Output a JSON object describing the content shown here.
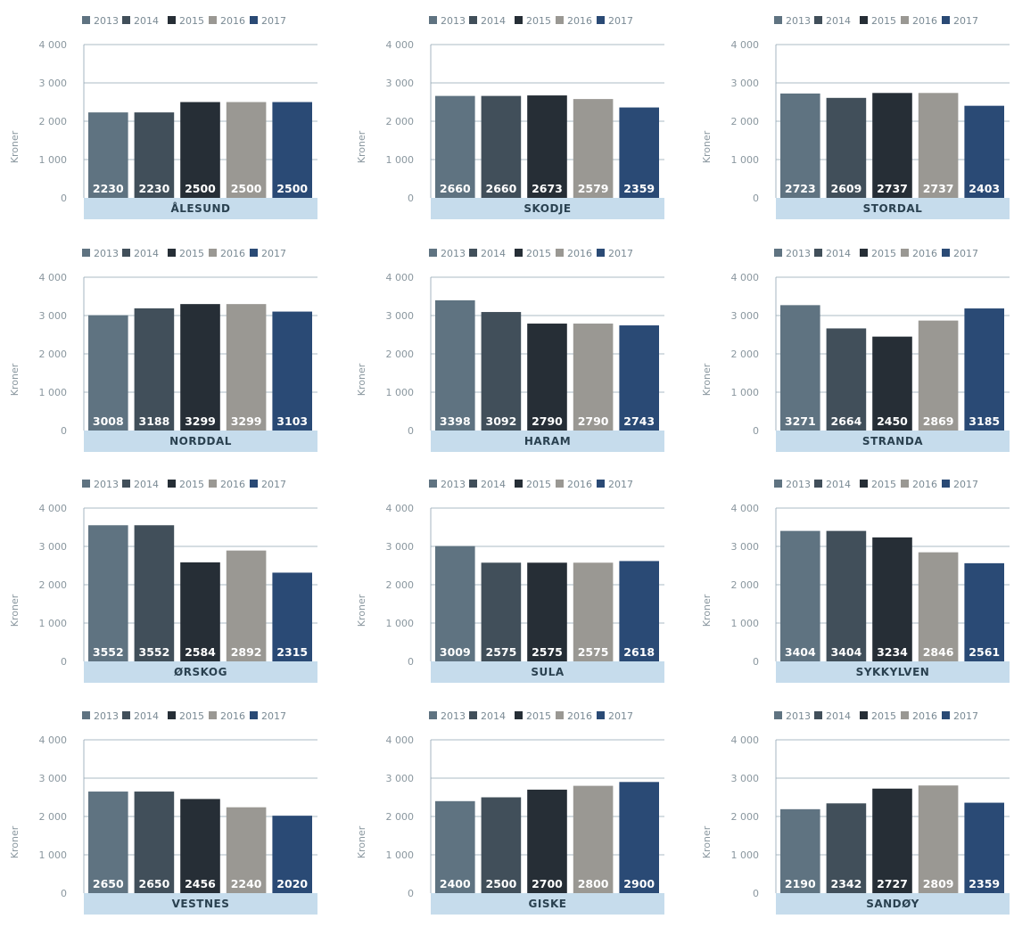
{
  "legend_years": [
    "2013",
    "2014",
    "2015",
    "2016",
    "2017"
  ],
  "series_colors": [
    "#5f7381",
    "#414f5a",
    "#262e36",
    "#9a9893",
    "#2a4a75"
  ],
  "label_band_color": "#c6dcec",
  "gridline_color": "#8fa4b3",
  "ylabel": "Kroner",
  "y_ticks": [
    "0",
    "1 000",
    "2 000",
    "3 000",
    "4 000"
  ],
  "ylim": [
    0,
    4000
  ],
  "chart_data": [
    {
      "type": "bar",
      "title": "ÅLESUND",
      "categories": [
        "2013",
        "2014",
        "2015",
        "2016",
        "2017"
      ],
      "values": [
        2230,
        2230,
        2500,
        2500,
        2500
      ],
      "ylabel": "Kroner",
      "ylim": [
        0,
        4000
      ],
      "legend": "top"
    },
    {
      "type": "bar",
      "title": "SKODJE",
      "categories": [
        "2013",
        "2014",
        "2015",
        "2016",
        "2017"
      ],
      "values": [
        2660,
        2660,
        2673,
        2579,
        2359
      ],
      "ylabel": "Kroner",
      "ylim": [
        0,
        4000
      ],
      "legend": "top"
    },
    {
      "type": "bar",
      "title": "STORDAL",
      "categories": [
        "2013",
        "2014",
        "2015",
        "2016",
        "2017"
      ],
      "values": [
        2723,
        2609,
        2737,
        2737,
        2403
      ],
      "ylabel": "Kroner",
      "ylim": [
        0,
        4000
      ],
      "legend": "top"
    },
    {
      "type": "bar",
      "title": "NORDDAL",
      "categories": [
        "2013",
        "2014",
        "2015",
        "2016",
        "2017"
      ],
      "values": [
        3008,
        3188,
        3299,
        3299,
        3103
      ],
      "ylabel": "Kroner",
      "ylim": [
        0,
        4000
      ],
      "legend": "top"
    },
    {
      "type": "bar",
      "title": "HARAM",
      "categories": [
        "2013",
        "2014",
        "2015",
        "2016",
        "2017"
      ],
      "values": [
        3398,
        3092,
        2790,
        2790,
        2743
      ],
      "ylabel": "Kroner",
      "ylim": [
        0,
        4000
      ],
      "legend": "top"
    },
    {
      "type": "bar",
      "title": "STRANDA",
      "categories": [
        "2013",
        "2014",
        "2015",
        "2016",
        "2017"
      ],
      "values": [
        3271,
        2664,
        2450,
        2869,
        3185
      ],
      "ylabel": "Kroner",
      "ylim": [
        0,
        4000
      ],
      "legend": "top"
    },
    {
      "type": "bar",
      "title": "ØRSKOG",
      "categories": [
        "2013",
        "2014",
        "2015",
        "2016",
        "2017"
      ],
      "values": [
        3552,
        3552,
        2584,
        2892,
        2315
      ],
      "ylabel": "Kroner",
      "ylim": [
        0,
        4000
      ],
      "legend": "top"
    },
    {
      "type": "bar",
      "title": "SULA",
      "categories": [
        "2013",
        "2014",
        "2015",
        "2016",
        "2017"
      ],
      "values": [
        3009,
        2575,
        2575,
        2575,
        2618
      ],
      "ylabel": "Kroner",
      "ylim": [
        0,
        4000
      ],
      "legend": "top"
    },
    {
      "type": "bar",
      "title": "SYKKYLVEN",
      "categories": [
        "2013",
        "2014",
        "2015",
        "2016",
        "2017"
      ],
      "values": [
        3404,
        3404,
        3234,
        2846,
        2561
      ],
      "ylabel": "Kroner",
      "ylim": [
        0,
        4000
      ],
      "legend": "top"
    },
    {
      "type": "bar",
      "title": "VESTNES",
      "categories": [
        "2013",
        "2014",
        "2015",
        "2016",
        "2017"
      ],
      "values": [
        2650,
        2650,
        2456,
        2240,
        2020
      ],
      "ylabel": "Kroner",
      "ylim": [
        0,
        4000
      ],
      "legend": "top"
    },
    {
      "type": "bar",
      "title": "GISKE",
      "categories": [
        "2013",
        "2014",
        "2015",
        "2016",
        "2017"
      ],
      "values": [
        2400,
        2500,
        2700,
        2800,
        2900
      ],
      "ylabel": "Kroner",
      "ylim": [
        0,
        4000
      ],
      "legend": "top"
    },
    {
      "type": "bar",
      "title": "SANDØY",
      "categories": [
        "2013",
        "2014",
        "2015",
        "2016",
        "2017"
      ],
      "values": [
        2190,
        2342,
        2727,
        2809,
        2359
      ],
      "ylabel": "Kroner",
      "ylim": [
        0,
        4000
      ],
      "legend": "top"
    }
  ]
}
